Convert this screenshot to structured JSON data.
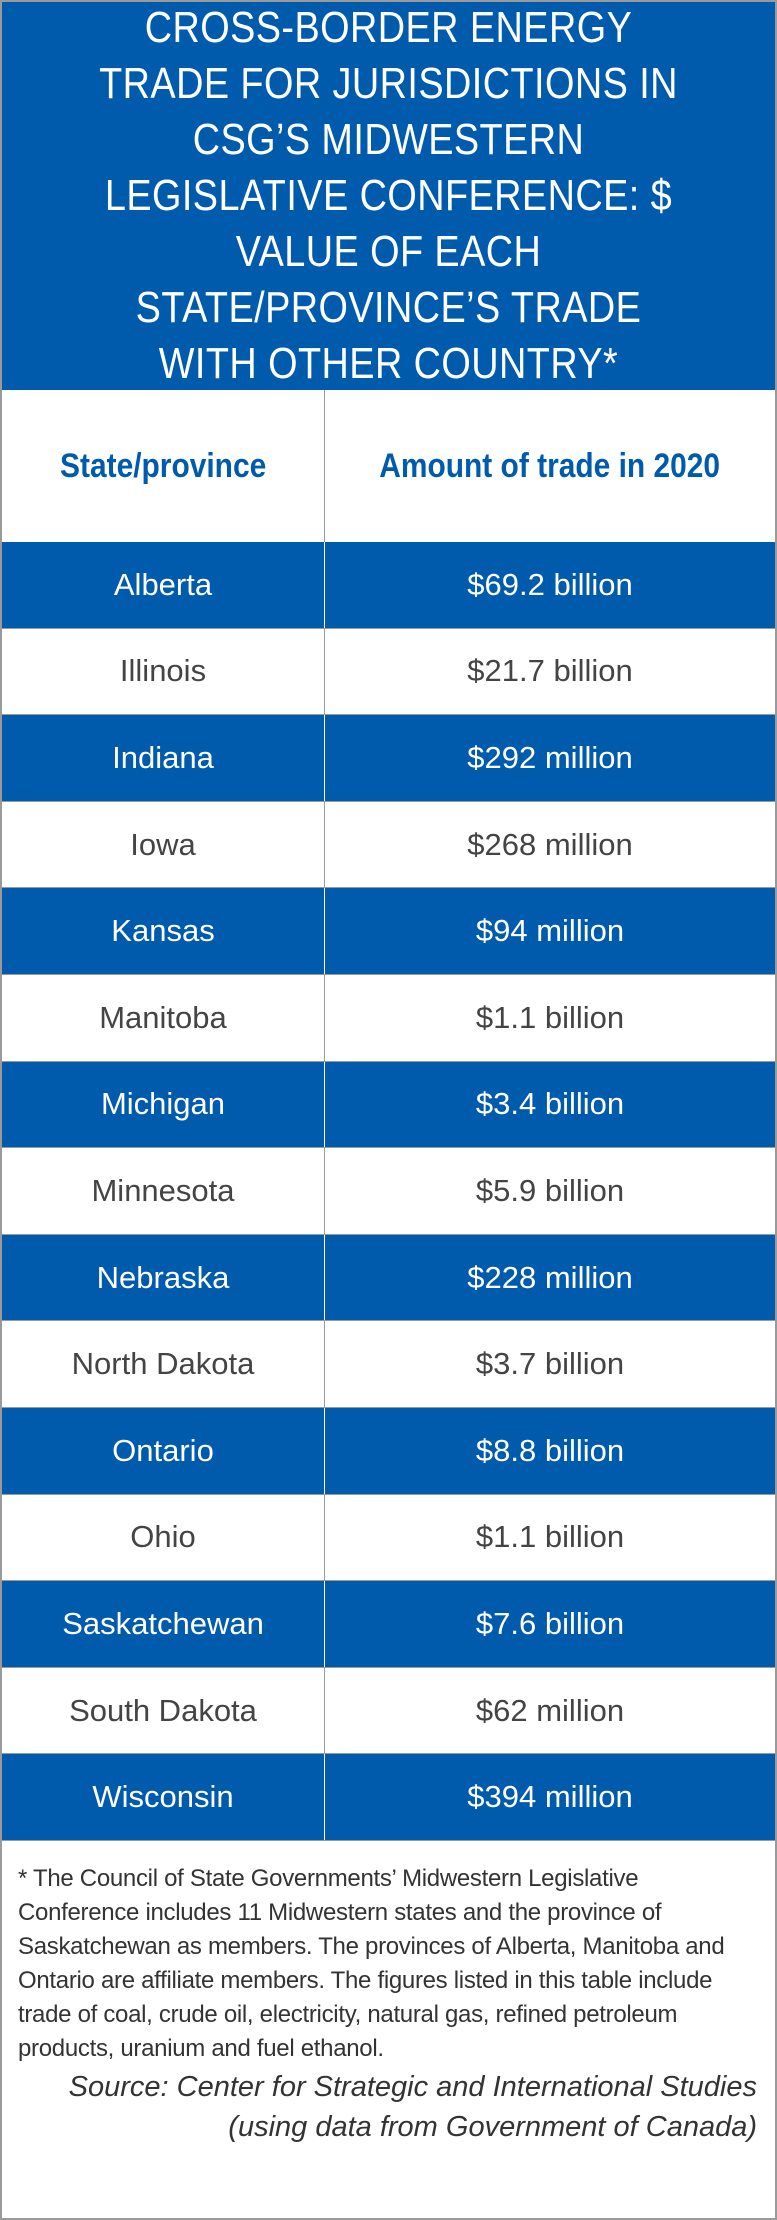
{
  "title": "Cross-border energy trade for jurisdictions in CSG’s Midwestern Legislative Conference: $ value of each state/province’s trade with other country*",
  "colors": {
    "accent": "#005bac",
    "text": "#444444",
    "border": "#9a9a9a"
  },
  "chart_data": {
    "type": "table",
    "title": "Cross-border energy trade for jurisdictions in CSG’s Midwestern Legislative Conference: $ value of each state/province’s trade with other country*",
    "columns": [
      "State/province",
      "Amount of trade in 2020"
    ],
    "rows": [
      {
        "name": "Alberta",
        "amount": "$69.2 billion"
      },
      {
        "name": "Illinois",
        "amount": "$21.7 billion"
      },
      {
        "name": "Indiana",
        "amount": "$292 million"
      },
      {
        "name": "Iowa",
        "amount": "$268 million"
      },
      {
        "name": "Kansas",
        "amount": "$94 million"
      },
      {
        "name": "Manitoba",
        "amount": "$1.1 billion"
      },
      {
        "name": "Michigan",
        "amount": "$3.4 billion"
      },
      {
        "name": "Minnesota",
        "amount": "$5.9 billion"
      },
      {
        "name": "Nebraska",
        "amount": "$228 million"
      },
      {
        "name": "North Dakota",
        "amount": "$3.7 billion"
      },
      {
        "name": "Ontario",
        "amount": "$8.8 billion"
      },
      {
        "name": "Ohio",
        "amount": "$1.1 billion"
      },
      {
        "name": "Saskatchewan",
        "amount": "$7.6 billion"
      },
      {
        "name": "South Dakota",
        "amount": "$62 million"
      },
      {
        "name": "Wisconsin",
        "amount": "$394 million"
      }
    ]
  },
  "footnote": "* The Council of State Governments’ Midwestern Legislative Conference includes 11 Midwestern states and the province of Saskatchewan as members. The provinces of Alberta, Manitoba and Ontario are affiliate members. The figures listed in this table include trade of coal, crude oil, electricity, natural gas, refined petroleum products, uranium and fuel ethanol.",
  "source_line1": "Source: Center for Strategic and International Studies",
  "source_line2": "(using data from Government of Canada)"
}
